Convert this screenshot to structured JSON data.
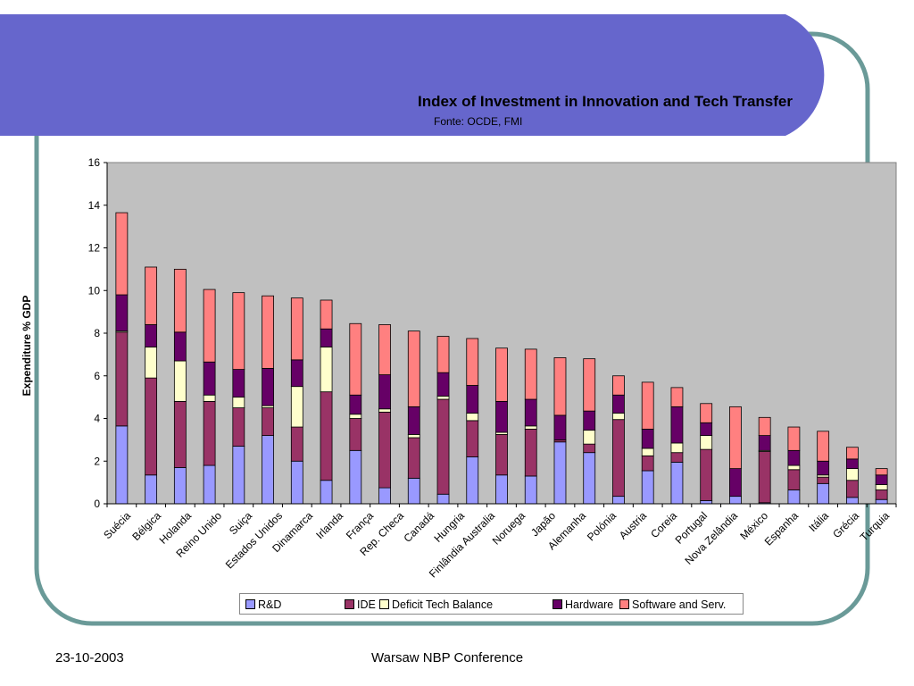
{
  "slide": {
    "frame_color": "#6a9a98",
    "banner_color": "#6666cc",
    "footer_date": "23-10-2003",
    "footer_title": "Warsaw NBP Conference"
  },
  "chart_data": {
    "type": "bar",
    "stacked": true,
    "title": "Index of Investment in Innovation and Tech Transfer",
    "subtitle": "Fonte: OCDE, FMI",
    "ylabel": "Expenditure % GDP",
    "xlabel": "",
    "ylim": [
      0,
      16
    ],
    "yticks": [
      "0",
      "2",
      "4",
      "6",
      "8",
      "10",
      "12",
      "14",
      "16"
    ],
    "grid": false,
    "plot_background": "#c0c0c0",
    "legend_position": "bottom",
    "categories": [
      "Suécia",
      "Bélgica",
      "Holanda",
      "Reino Unido",
      "Suiça",
      "Estados Unidos",
      "Dinamarca",
      "Irlanda",
      "França",
      "Rep. Checa",
      "Canadá",
      "Hungria",
      "Finlândia",
      "Australia",
      "Noruega",
      "Japão",
      "Alemanha",
      "Polónia",
      "Austria",
      "Coreia",
      "Portugal",
      "Nova Zelândia",
      "México",
      "Espanha",
      "Itália",
      "Grécia",
      "Turquia"
    ],
    "category_slot_labels": [
      "Suécia",
      "Bélgica",
      "Holanda",
      "Reino Unido",
      "Suiça",
      "Estados Unidos",
      "Dinamarca",
      "Irlanda",
      "França",
      "Rep. Checa",
      "Canadá",
      "Hungria",
      "Finlândia Australia",
      "Noruega",
      "Japão",
      "Alemanha",
      "Polónia",
      "Austria",
      "Coreia",
      "Portugal",
      "Nova Zelândia",
      "México",
      "Espanha",
      "Itália",
      "Grécia",
      "Turquia"
    ],
    "series": [
      {
        "name": "R&D",
        "color": "#9999ff",
        "values": [
          3.65,
          1.35,
          1.7,
          1.8,
          2.7,
          3.2,
          2.0,
          1.1,
          2.5,
          0.75,
          1.2,
          0.45,
          2.2,
          1.35,
          1.3,
          2.9,
          2.4,
          0.35,
          1.55,
          1.95,
          0.15,
          0.35,
          0.05,
          0.65,
          0.95,
          0.3,
          0.2
        ]
      },
      {
        "name": "IDE",
        "color": "#993366",
        "values": [
          4.4,
          4.55,
          3.1,
          3.0,
          1.8,
          1.3,
          1.6,
          4.15,
          1.5,
          3.55,
          1.9,
          4.45,
          1.7,
          1.9,
          2.2,
          0.1,
          0.4,
          3.6,
          0.7,
          0.45,
          2.4,
          0.0,
          2.4,
          0.95,
          0.3,
          0.8,
          0.45
        ]
      },
      {
        "name": "Deficit Tech Balance",
        "color": "#ffffcc",
        "values": [
          0.05,
          1.45,
          1.9,
          0.3,
          0.5,
          0.1,
          1.9,
          2.1,
          0.2,
          0.15,
          0.15,
          0.15,
          0.35,
          0.1,
          0.15,
          0.0,
          0.65,
          0.3,
          0.35,
          0.45,
          0.65,
          0.0,
          0.05,
          0.2,
          0.1,
          0.55,
          0.25
        ]
      },
      {
        "name": "Hardware",
        "color": "#660066",
        "values": [
          1.7,
          1.05,
          1.35,
          1.55,
          1.3,
          1.75,
          1.25,
          0.85,
          0.9,
          1.6,
          1.3,
          1.1,
          1.3,
          1.45,
          1.25,
          1.15,
          0.9,
          0.85,
          0.9,
          1.7,
          0.6,
          1.3,
          0.7,
          0.7,
          0.65,
          0.45,
          0.45
        ]
      },
      {
        "name": "Software and Serv.",
        "color": "#ff8080",
        "values": [
          3.85,
          2.7,
          2.95,
          3.4,
          3.6,
          3.4,
          2.9,
          1.35,
          3.35,
          2.35,
          3.55,
          1.7,
          2.2,
          2.5,
          2.35,
          2.7,
          2.45,
          0.9,
          2.2,
          0.9,
          0.9,
          2.9,
          0.85,
          1.1,
          1.4,
          0.55,
          0.3
        ]
      }
    ]
  }
}
